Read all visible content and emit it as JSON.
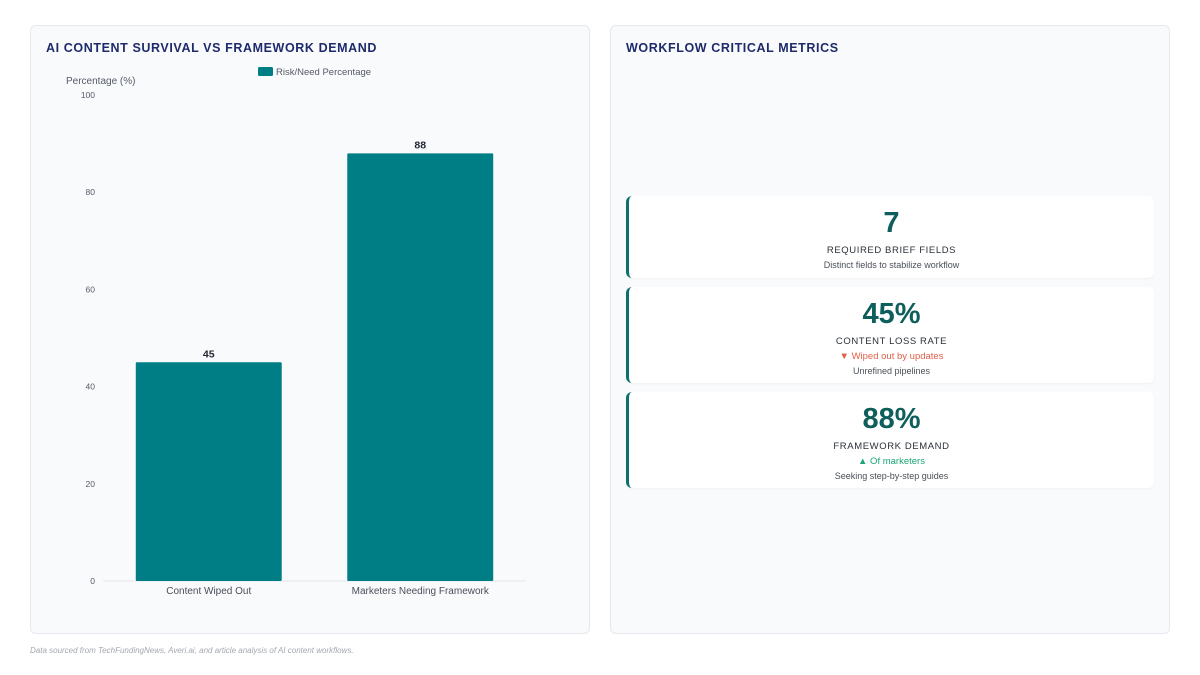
{
  "chart_panel": {
    "title": "AI CONTENT SURVIVAL VS FRAMEWORK DEMAND"
  },
  "chart_data": {
    "type": "bar",
    "categories": [
      "Content Wiped Out",
      "Marketers Needing Framework"
    ],
    "series": [
      {
        "name": "Risk/Need Percentage",
        "values": [
          45,
          88
        ]
      }
    ],
    "ylabel": "Percentage (%)",
    "xlabel": "",
    "ylim": [
      0,
      100
    ],
    "yticks": [
      0,
      20,
      40,
      60,
      80,
      100
    ],
    "bar_color": "#007e85",
    "legend_position": "top-center",
    "grid": false,
    "data_labels": [
      "45",
      "88"
    ]
  },
  "metrics_panel": {
    "title": "WORKFLOW CRITICAL METRICS",
    "cards": [
      {
        "value": "7",
        "label": "REQUIRED BRIEF FIELDS",
        "trend": "",
        "trend_dir": "",
        "sub": "Distinct fields to stabilize workflow"
      },
      {
        "value": "45%",
        "label": "CONTENT LOSS RATE",
        "trend": "▼ Wiped out by updates",
        "trend_dir": "down",
        "sub": "Unrefined pipelines"
      },
      {
        "value": "88%",
        "label": "FRAMEWORK DEMAND",
        "trend": "▲ Of marketers",
        "trend_dir": "up",
        "sub": "Seeking step-by-step guides"
      }
    ],
    "accent_color": "#0e6f6c",
    "down_color": "#e0604a",
    "up_color": "#19a873"
  },
  "footnote": "Data sourced from TechFundingNews, Averi.ai, and article analysis of AI content workflows."
}
